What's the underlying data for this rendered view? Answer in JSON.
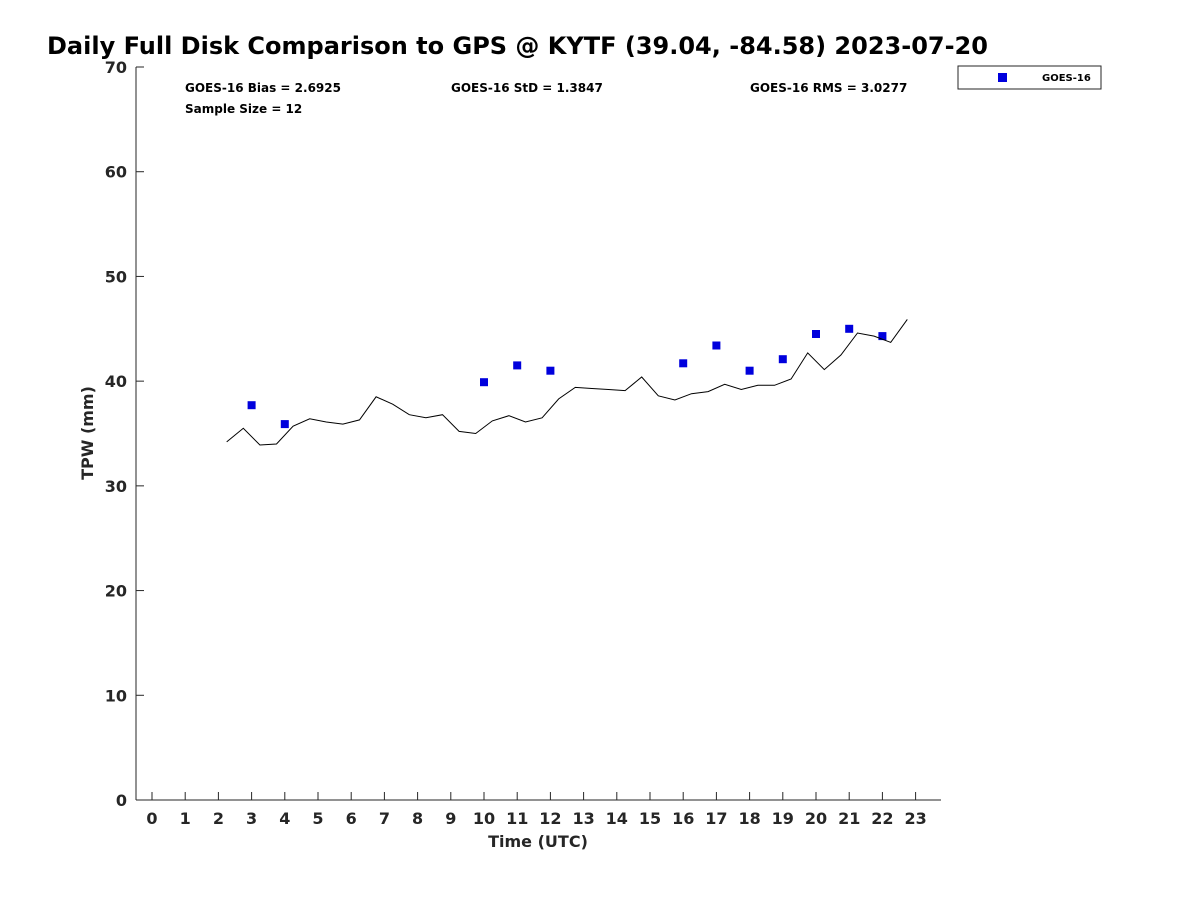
{
  "chart_data": {
    "type": "scatter",
    "title": "Daily Full Disk Comparison to GPS @ KYTF (39.04, -84.58) 2023-07-20",
    "xlabel": "Time (UTC)",
    "ylabel": "TPW (mm)",
    "xlim": [
      -0.5,
      23.8
    ],
    "ylim": [
      0,
      70
    ],
    "xticks": [
      "0",
      "1",
      "2",
      "3",
      "4",
      "5",
      "6",
      "7",
      "8",
      "9",
      "10",
      "11",
      "12",
      "13",
      "14",
      "15",
      "16",
      "17",
      "18",
      "19",
      "20",
      "21",
      "22",
      "23"
    ],
    "yticks": [
      "0",
      "10",
      "20",
      "30",
      "40",
      "50",
      "60",
      "70"
    ],
    "grid": false,
    "legend_position": "top-right",
    "stats": {
      "bias": "GOES-16 Bias = 2.6925",
      "std": "GOES-16 StD = 1.3847",
      "rms": "GOES-16 RMS = 3.0277",
      "sample_size": "Sample Size = 12"
    },
    "series": [
      {
        "name": "GOES-16",
        "kind": "scatter",
        "color": "#0000dd",
        "x": [
          3,
          4,
          10,
          11,
          12,
          16,
          17,
          18,
          19,
          20,
          21,
          22
        ],
        "y": [
          37.7,
          35.9,
          39.9,
          41.5,
          41.0,
          41.7,
          43.4,
          41.0,
          42.1,
          44.5,
          45.0,
          44.3
        ]
      },
      {
        "kind": "line",
        "color": "#000000",
        "x": [
          2.25,
          2.75,
          3.25,
          3.75,
          4.25,
          4.75,
          5.25,
          5.75,
          6.25,
          6.75,
          7.25,
          7.75,
          8.25,
          8.75,
          9.25,
          9.75,
          10.25,
          10.75,
          11.25,
          11.75,
          12.25,
          12.75,
          13.25,
          13.75,
          14.25,
          14.75,
          15.25,
          15.75,
          16.25,
          16.75,
          17.25,
          17.75,
          18.25,
          18.75,
          19.25,
          19.75,
          20.25,
          20.75,
          21.25,
          21.75,
          22.25,
          22.75
        ],
        "y": [
          34.2,
          35.5,
          33.9,
          34.0,
          35.7,
          36.4,
          36.1,
          35.9,
          36.3,
          38.5,
          37.8,
          36.8,
          36.5,
          36.8,
          35.2,
          35.0,
          36.2,
          36.7,
          36.1,
          36.5,
          38.3,
          39.4,
          39.3,
          39.2,
          39.1,
          40.4,
          38.6,
          38.2,
          38.8,
          39.0,
          39.7,
          39.2,
          39.6,
          39.6,
          40.2,
          42.7,
          41.1,
          42.5,
          44.6,
          44.3,
          43.7,
          45.9
        ]
      }
    ]
  }
}
